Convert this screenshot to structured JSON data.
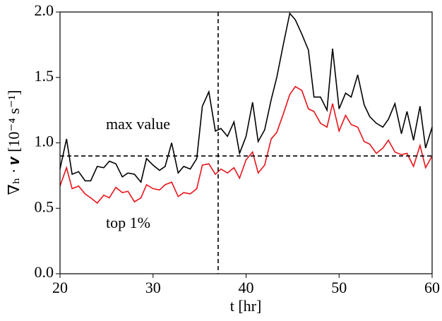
{
  "chart_data": {
    "type": "line",
    "ylabel": "∇ₕ · 𝒗 [10⁻⁴ s⁻¹]",
    "xlabel": "t [hr]",
    "annotations": [
      "max value",
      "top 1%"
    ],
    "x": [
      20,
      20.7,
      21.3,
      22,
      22.7,
      23.3,
      24,
      24.7,
      25.3,
      26,
      26.7,
      27.3,
      28,
      28.7,
      29.3,
      30,
      30.7,
      31.3,
      32,
      32.7,
      33.3,
      34,
      34.7,
      35.3,
      36,
      36.7,
      37.3,
      38,
      38.7,
      39.3,
      40,
      40.7,
      41.3,
      42,
      42.7,
      43.3,
      44,
      44.7,
      45.3,
      46,
      46.7,
      47.3,
      48,
      48.7,
      49.3,
      50,
      50.7,
      51.3,
      52,
      52.7,
      53.3,
      54,
      54.7,
      55.3,
      56,
      56.7,
      57.3,
      58,
      58.7,
      59.3,
      60
    ],
    "series": [
      {
        "color": "#000000",
        "values": [
          0.8,
          1.03,
          0.76,
          0.78,
          0.71,
          0.71,
          0.82,
          0.81,
          0.86,
          0.84,
          0.74,
          0.77,
          0.76,
          0.7,
          0.88,
          0.83,
          0.79,
          0.82,
          1.0,
          0.77,
          0.82,
          0.8,
          0.88,
          1.28,
          1.39,
          1.09,
          1.11,
          1.05,
          1.16,
          0.92,
          1.05,
          1.31,
          1.01,
          1.1,
          1.33,
          1.5,
          1.75,
          1.99,
          1.94,
          1.83,
          1.71,
          1.35,
          1.35,
          1.25,
          1.72,
          1.26,
          1.38,
          1.35,
          1.52,
          1.29,
          1.2,
          1.15,
          1.12,
          1.18,
          1.3,
          1.07,
          1.24,
          1.02,
          1.28,
          0.96,
          1.12
        ]
      },
      {
        "color": "#e8141b",
        "values": [
          0.67,
          0.81,
          0.65,
          0.67,
          0.61,
          0.58,
          0.54,
          0.6,
          0.58,
          0.66,
          0.62,
          0.63,
          0.55,
          0.58,
          0.68,
          0.65,
          0.64,
          0.68,
          0.7,
          0.59,
          0.62,
          0.61,
          0.65,
          0.83,
          0.84,
          0.76,
          0.8,
          0.77,
          0.81,
          0.73,
          0.87,
          0.93,
          0.77,
          0.83,
          1.03,
          1.08,
          1.22,
          1.37,
          1.43,
          1.4,
          1.26,
          1.24,
          1.15,
          1.12,
          1.3,
          1.09,
          1.21,
          1.14,
          1.12,
          1.01,
          0.99,
          0.92,
          0.96,
          1.02,
          0.93,
          0.91,
          0.92,
          0.82,
          0.98,
          0.81,
          0.9
        ]
      }
    ],
    "vline": 37,
    "hline": 0.9,
    "xlim": [
      20,
      60
    ],
    "xticks": [
      20,
      30,
      40,
      50,
      60
    ],
    "ylim": [
      0,
      2
    ],
    "yticks": [
      {
        "value": 0,
        "label": "0.0"
      },
      {
        "value": 0.5,
        "label": "0.5"
      },
      {
        "value": 1,
        "label": "1.0"
      },
      {
        "value": 1.5,
        "label": "1.5"
      },
      {
        "value": 2,
        "label": "2.0"
      }
    ]
  }
}
